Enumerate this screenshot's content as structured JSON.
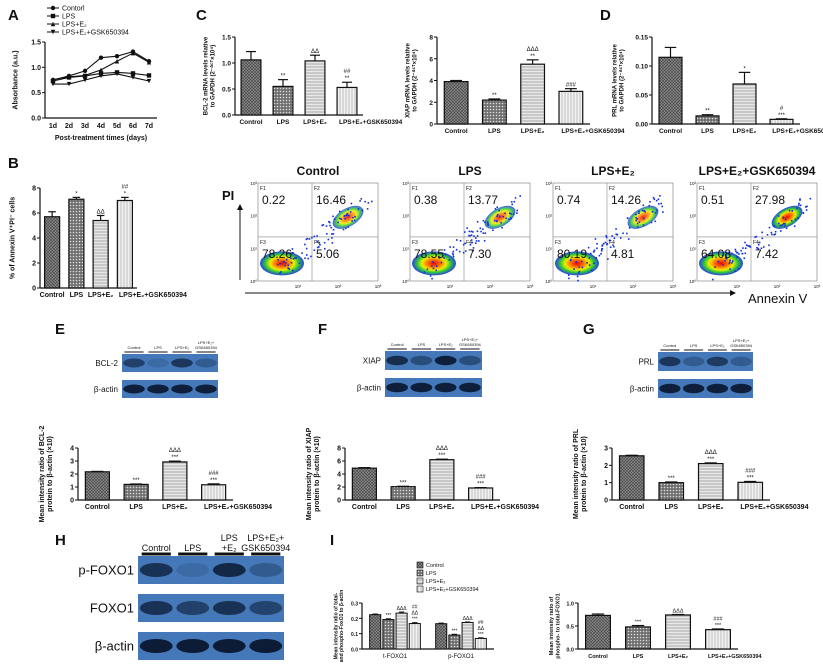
{
  "groups": [
    "Control",
    "LPS",
    "LPS+E₂",
    "LPS+E₂+GSK650394"
  ],
  "panel_labels": [
    "A",
    "B",
    "C",
    "D",
    "E",
    "F",
    "G",
    "H",
    "I"
  ],
  "colors": {
    "bar_fill": "#ffffff",
    "dark": "#555555",
    "blot_bg": "#3a6fb0",
    "band": "#0b1a33"
  },
  "chart_data": [
    {
      "id": "A",
      "type": "line",
      "x": [
        "1d",
        "2d",
        "3d",
        "4d",
        "5d",
        "6d",
        "7d"
      ],
      "xlabel": "Post-treatment times (days)",
      "ylabel": "Absorbance (a.u.)",
      "ylim": [
        0,
        1.5
      ],
      "yticks": [
        "0.0",
        "0.5",
        "1.0",
        "1.5"
      ],
      "legend": "top",
      "series": [
        {
          "name": "Contorl",
          "values": [
            0.75,
            0.83,
            0.93,
            1.19,
            1.22,
            1.31,
            1.12
          ],
          "marker": "circle"
        },
        {
          "name": "LPS",
          "values": [
            0.73,
            0.8,
            0.83,
            0.88,
            0.9,
            0.88,
            0.84
          ],
          "marker": "square"
        },
        {
          "name": "LPS+E₂",
          "values": [
            0.76,
            0.81,
            0.84,
            0.95,
            1.12,
            1.28,
            1.1
          ],
          "marker": "triangle-up"
        },
        {
          "name": "LPS+E₂+GSK650394",
          "values": [
            0.67,
            0.67,
            0.75,
            0.83,
            0.87,
            0.8,
            0.73
          ],
          "marker": "triangle-down"
        }
      ]
    },
    {
      "id": "C1",
      "type": "bar",
      "categories": [
        "Control",
        "LPS",
        "LPS+E₂",
        "LPS+E₂+GSK650394"
      ],
      "values": [
        1.06,
        0.55,
        1.04,
        0.53
      ],
      "errors": [
        0.16,
        0.13,
        0.11,
        0.1
      ],
      "ylim": [
        0,
        1.5
      ],
      "yticks": [
        "0.0",
        "0.5",
        "1.0",
        "1.5"
      ],
      "ylabel": "BCL-2 mRNA levels relative to GAPDH (2⁻ᐞᶜᵀ×10⁴)",
      "annotations": [
        "",
        "**",
        "ΔΔ",
        "##|**"
      ]
    },
    {
      "id": "C2",
      "type": "bar",
      "categories": [
        "Control",
        "LPS",
        "LPS+E₂",
        "LPS+E₂+GSK650394"
      ],
      "values": [
        3.9,
        2.2,
        5.5,
        3.0
      ],
      "errors": [
        0.1,
        0.1,
        0.4,
        0.25
      ],
      "ylim": [
        0,
        8
      ],
      "yticks": [
        "0",
        "2",
        "4",
        "6",
        "8"
      ],
      "ylabel": "XIAP mRNA levels relative to GAPDH (2⁻ᐞᶜᵀ×10⁴)",
      "annotations": [
        "",
        "**",
        "ΔΔΔ|**",
        "###"
      ]
    },
    {
      "id": "D",
      "type": "bar",
      "categories": [
        "Control",
        "LPS",
        "LPS+E₂",
        "LPS+E₂+GSK650394"
      ],
      "values": [
        0.115,
        0.014,
        0.069,
        0.008
      ],
      "errors": [
        0.017,
        0.002,
        0.02,
        0.001
      ],
      "ylim": [
        0,
        0.15
      ],
      "yticks": [
        "0.00",
        "0.05",
        "0.10",
        "0.15"
      ],
      "ylabel": "PRL mRNA levels relative to GAPDH (2⁻ᐞᶜᵀ×10⁴)",
      "annotations": [
        "",
        "**",
        "*",
        "#|***"
      ]
    },
    {
      "id": "B",
      "type": "bar",
      "categories": [
        "Control",
        "LPS",
        "LPS+E₂",
        "LPS+E₂+GSK650394"
      ],
      "values": [
        5.7,
        7.1,
        5.4,
        7.0
      ],
      "errors": [
        0.4,
        0.15,
        0.4,
        0.25
      ],
      "ylim": [
        0,
        8
      ],
      "yticks": [
        "0",
        "2",
        "4",
        "6",
        "8"
      ],
      "ylabel": "% of Annexin V⁺PI⁻ cells",
      "annotations": [
        "",
        "*",
        "ΔΔ",
        "##|*"
      ]
    },
    {
      "id": "E",
      "type": "bar",
      "categories": [
        "Control",
        "LPS",
        "LPS+E₂",
        "LPS+E₂+GSK650394"
      ],
      "values": [
        2.17,
        1.2,
        2.93,
        1.17
      ],
      "errors": [
        0.03,
        0.03,
        0.06,
        0.07
      ],
      "ylim": [
        0,
        4
      ],
      "yticks": [
        "0",
        "1",
        "2",
        "3",
        "4"
      ],
      "ylabel": "Mean intensity ratio of BCL-2 protein to β-actin (×10)",
      "annotations": [
        "",
        "***",
        "ΔΔΔ|***",
        "###|***"
      ]
    },
    {
      "id": "F",
      "type": "bar",
      "categories": [
        "Control",
        "LPS",
        "LPS+E₂",
        "LPS+E₂+GSK650394"
      ],
      "values": [
        4.9,
        2.05,
        6.2,
        1.85
      ],
      "errors": [
        0.08,
        0.06,
        0.08,
        0.06
      ],
      "ylim": [
        0,
        8
      ],
      "yticks": [
        "0",
        "2",
        "4",
        "6",
        "8"
      ],
      "ylabel": "Mean intensity ratio of XIAP protein to β-actin (×10)",
      "annotations": [
        "",
        "***",
        "ΔΔΔ|***",
        "###|***"
      ]
    },
    {
      "id": "G",
      "type": "bar",
      "categories": [
        "Control",
        "LPS",
        "LPS+E₂",
        "LPS+E₂+GSK650394"
      ],
      "values": [
        2.55,
        1.0,
        2.1,
        1.02
      ],
      "errors": [
        0.03,
        0.04,
        0.04,
        0.05
      ],
      "ylim": [
        0,
        3
      ],
      "yticks": [
        "0",
        "1",
        "2",
        "3"
      ],
      "ylabel": "Mean intensity ratio of PRL protein to β-actin (×10)",
      "annotations": [
        "",
        "***",
        "ΔΔΔ|***",
        "###|***"
      ]
    },
    {
      "id": "I1",
      "type": "grouped-bar",
      "categories": [
        "t-FOXO1",
        "p-FOXO1"
      ],
      "series": [
        {
          "name": "Control",
          "values": [
            0.224,
            0.165
          ],
          "errors": [
            0.004,
            0.004
          ]
        },
        {
          "name": "LPS",
          "values": [
            0.192,
            0.091
          ],
          "errors": [
            0.005,
            0.005
          ]
        },
        {
          "name": "LPS+E₂",
          "values": [
            0.234,
            0.173
          ],
          "errors": [
            0.007,
            0.003
          ]
        },
        {
          "name": "LPS+E₂+GSK650394",
          "values": [
            0.166,
            0.069
          ],
          "errors": [
            0.006,
            0.004
          ]
        }
      ],
      "annotations": [
        [
          "",
          "***",
          "ΔΔΔ",
          "##|ΔΔ|***"
        ],
        [
          "",
          "***",
          "ΔΔΔ",
          "##|ΔΔ|***"
        ]
      ],
      "ylim": [
        0,
        0.3
      ],
      "yticks": [
        "0.0",
        "0.1",
        "0.2",
        "0.3"
      ],
      "legend": "top",
      "ylabel": "Mean intensity ratio of total- and phospho-FoxO1 to β-actin"
    },
    {
      "id": "I2",
      "type": "bar",
      "categories": [
        "Control",
        "LPS",
        "LPS+E₂",
        "LPS+E₂+GSK650394"
      ],
      "values": [
        0.73,
        0.48,
        0.74,
        0.42
      ],
      "errors": [
        0.03,
        0.03,
        0.01,
        0.015
      ],
      "ylim": [
        0,
        1.0
      ],
      "yticks": [
        "0.0",
        "0.5",
        "1.0"
      ],
      "ylabel": "Mean intensity ratio of phospho- to total-FOXO1",
      "annotations": [
        "",
        "***",
        "ΔΔΔ",
        "###|***"
      ]
    },
    {
      "id": "B-flow",
      "type": "scatter",
      "xlabel": "Annexin V",
      "ylabel": "PI",
      "quadrant_labels": [
        "F1",
        "F2",
        "F3",
        "F4"
      ],
      "axis_ticks": [
        "10⁰",
        "10¹",
        "10²",
        "10³"
      ],
      "plots": [
        {
          "title": "Control",
          "quadrants": [
            "0.22",
            "16.46",
            "78.26",
            "5.06"
          ]
        },
        {
          "title": "LPS",
          "quadrants": [
            "0.38",
            "13.77",
            "78.55",
            "7.30"
          ]
        },
        {
          "title": "LPS+E₂",
          "quadrants": [
            "0.74",
            "14.26",
            "80.19",
            "4.81"
          ]
        },
        {
          "title": "LPS+E₂+GSK650394",
          "quadrants": [
            "0.51",
            "27.98",
            "64.08",
            "7.42"
          ]
        }
      ]
    }
  ],
  "blots": {
    "E": {
      "header": [
        "Control",
        "LPS",
        "LPS+E₂",
        "LPS+E₂+ GSK650394"
      ],
      "rows": [
        "BCL-2",
        "β-actin"
      ]
    },
    "F": {
      "header": [
        "Control",
        "LPS",
        "LPS+E₂",
        "LPS+E₂+ GSK650394"
      ],
      "rows": [
        "XIAP",
        "β-actin"
      ]
    },
    "G": {
      "header": [
        "Control",
        "LPS",
        "LPS+E₂",
        "LPS+E₂+ GSK650394"
      ],
      "rows": [
        "PRL",
        "β-actin"
      ]
    },
    "H": {
      "header": [
        "Control",
        "LPS",
        "LPS +E₂",
        "LPS+E₂+ GSK650394"
      ],
      "rows": [
        "p-FOXO1",
        "FOXO1",
        "β-actin"
      ]
    }
  }
}
